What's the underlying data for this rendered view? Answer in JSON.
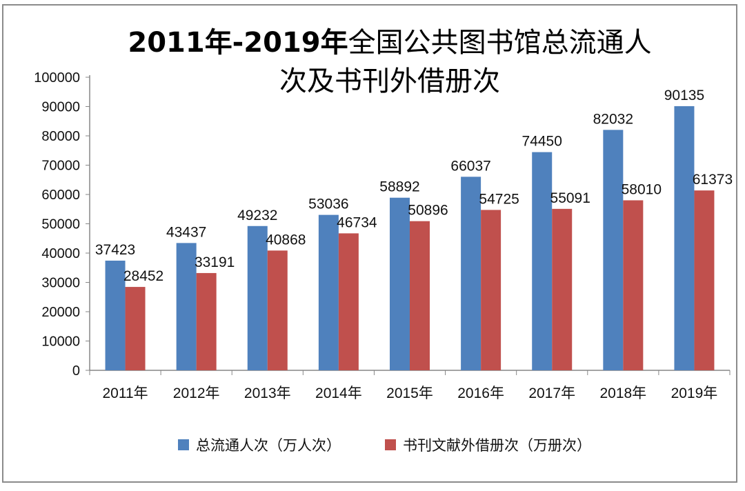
{
  "chart_data": {
    "type": "bar",
    "title_bold": "2011年-2019年",
    "title_rest_line1": "全国公共图书馆总流通人",
    "title_line2": "次及书刊外借册次",
    "categories": [
      "2011年",
      "2012年",
      "2013年",
      "2014年",
      "2015年",
      "2016年",
      "2017年",
      "2018年",
      "2019年"
    ],
    "series": [
      {
        "name": "总流通人次（万人次）",
        "color": "#4f81bd",
        "values": [
          37423,
          43437,
          49232,
          53036,
          58892,
          66037,
          74450,
          82032,
          90135
        ]
      },
      {
        "name": "书刊文献外借册次（万册次）",
        "color": "#c0504d",
        "values": [
          28452,
          33191,
          40868,
          46734,
          50896,
          54725,
          55091,
          58010,
          61373
        ]
      }
    ],
    "ylim": [
      0,
      100000
    ],
    "yticks": [
      0,
      10000,
      20000,
      30000,
      40000,
      50000,
      60000,
      70000,
      80000,
      90000,
      100000
    ],
    "grid": false,
    "legend": "bottom",
    "xlabel": "",
    "ylabel": ""
  }
}
